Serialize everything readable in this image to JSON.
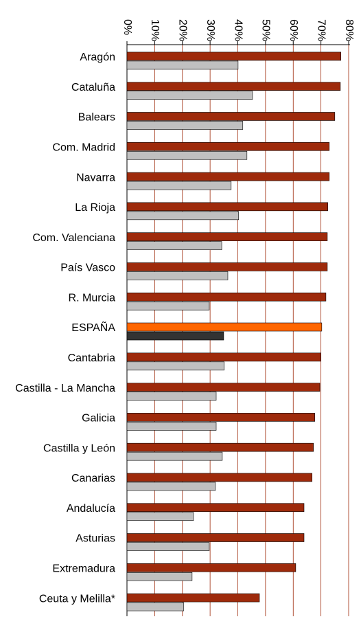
{
  "chart_data": {
    "type": "hbar",
    "categories": [
      "Aragón",
      "Cataluña",
      "Balears",
      "Com. Madrid",
      "Navarra",
      "La Rioja",
      "Com. Valenciana",
      "País Vasco",
      "R. Murcia",
      "ESPAÑA",
      "Cantabria",
      "Castilla - La Mancha",
      "Galicia",
      "Castilla y León",
      "Canarias",
      "Andalucía",
      "Asturias",
      "Extremadura",
      "Ceuta y Melilla*"
    ],
    "series": [
      {
        "color": "#9e2a0b",
        "colors": [
          "#9e2a0b",
          "#9e2a0b",
          "#9e2a0b",
          "#9e2a0b",
          "#9e2a0b",
          "#9e2a0b",
          "#9e2a0b",
          "#9e2a0b",
          "#9e2a0b",
          "#ff6600",
          "#9e2a0b",
          "#9e2a0b",
          "#9e2a0b",
          "#9e2a0b",
          "#9e2a0b",
          "#9e2a0b",
          "#9e2a0b",
          "#9e2a0b",
          "#9e2a0b"
        ],
        "values": [
          77.2,
          77,
          75,
          73,
          73,
          72.5,
          72.3,
          72.3,
          71.8,
          70.3,
          70,
          69.6,
          67.8,
          67.3,
          66.8,
          63.9,
          63.9,
          60.9,
          47.8
        ]
      },
      {
        "color": "#c0c0c0",
        "colors": [
          "#c0c0c0",
          "#c0c0c0",
          "#c0c0c0",
          "#c0c0c0",
          "#c0c0c0",
          "#c0c0c0",
          "#c0c0c0",
          "#c0c0c0",
          "#c0c0c0",
          "#333333",
          "#c0c0c0",
          "#c0c0c0",
          "#c0c0c0",
          "#c0c0c0",
          "#c0c0c0",
          "#c0c0c0",
          "#c0c0c0",
          "#c0c0c0",
          "#c0c0c0"
        ],
        "values": [
          40.1,
          45.3,
          41.8,
          43.3,
          37.6,
          40.3,
          34.2,
          36.4,
          29.7,
          34.9,
          35.1,
          32.2,
          32.2,
          34.4,
          31.9,
          24,
          29.7,
          23.5,
          20.5
        ]
      }
    ],
    "xlim": [
      0,
      80
    ],
    "xticks": [
      {
        "value": 0,
        "label": "0%"
      },
      {
        "value": 10,
        "label": "10%"
      },
      {
        "value": 20,
        "label": "20%"
      },
      {
        "value": 30,
        "label": "30%"
      },
      {
        "value": 40,
        "label": "40%"
      },
      {
        "value": 50,
        "label": "50%"
      },
      {
        "value": 60,
        "label": "60%"
      },
      {
        "value": 70,
        "label": "70%"
      },
      {
        "value": 80,
        "label": "80%"
      }
    ],
    "grid": true,
    "grid_color": "#9e2a0b"
  }
}
